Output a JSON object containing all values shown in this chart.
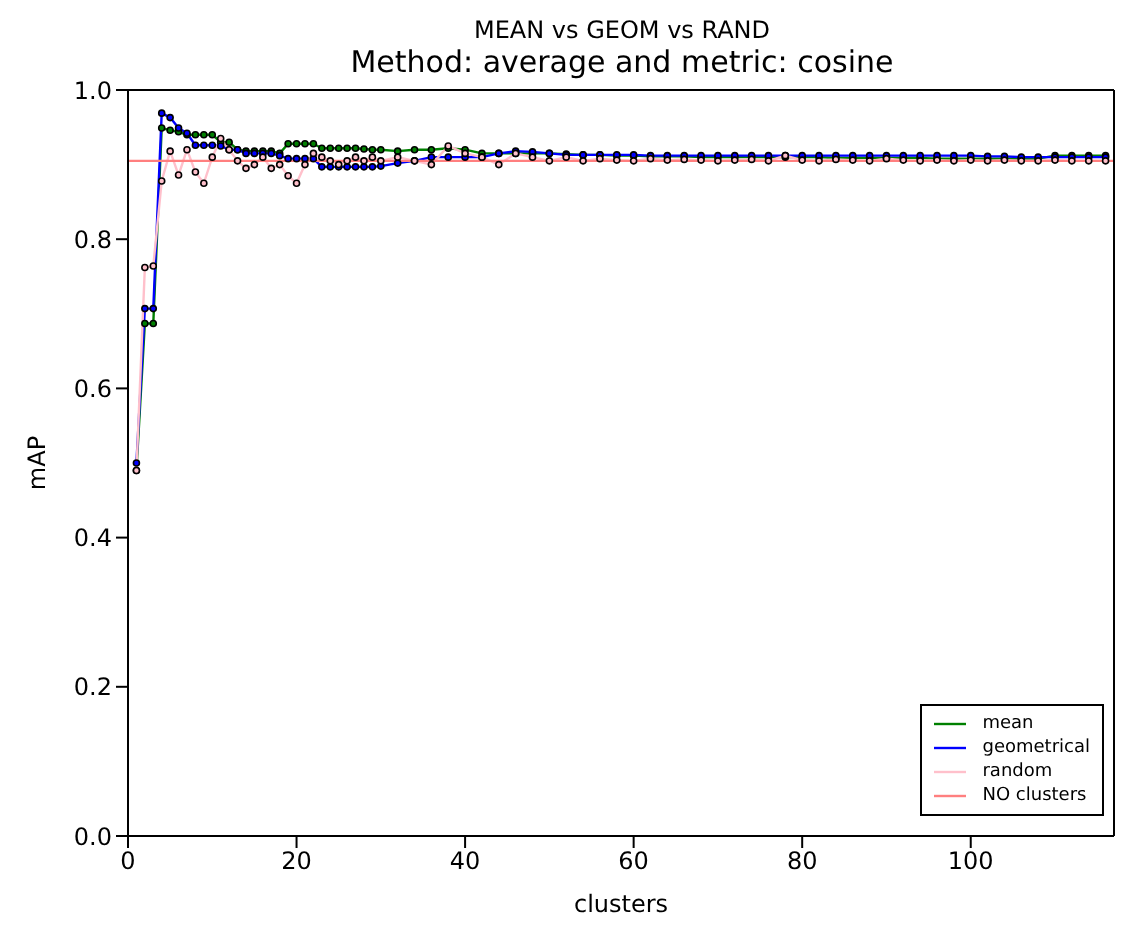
{
  "chart_data": {
    "type": "line",
    "title": "MEAN vs GEOM vs RAND",
    "subtitle": "Method: average and metric: cosine",
    "xlabel": "clusters",
    "ylabel": "mAP",
    "xlim": [
      0,
      117
    ],
    "xticks": [
      0,
      20,
      40,
      60,
      80,
      100
    ],
    "ylim": [
      0,
      1
    ],
    "yticks": [
      {
        "value": 0,
        "label": "0.0"
      },
      {
        "value": 0.2,
        "label": "0.2"
      },
      {
        "value": 0.4,
        "label": "0.4"
      },
      {
        "value": 0.6,
        "label": "0.6"
      },
      {
        "value": 0.8,
        "label": "0.8"
      },
      {
        "value": 1,
        "label": "1.0"
      }
    ],
    "legend": "bottom right",
    "marker": "circle",
    "line_style": "solid",
    "series": [
      {
        "name": "mean",
        "color": "#008000",
        "x": [
          1,
          2,
          3,
          4,
          5,
          6,
          7,
          8,
          9,
          10,
          11,
          12,
          13,
          14,
          15,
          16,
          17,
          18,
          19,
          20,
          21,
          22,
          23,
          24,
          25,
          26,
          27,
          28,
          29,
          30,
          32,
          34,
          36,
          38,
          40,
          42,
          44,
          46,
          48,
          50,
          52,
          54,
          56,
          58,
          60,
          62,
          64,
          66,
          68,
          70,
          72,
          74,
          76,
          78,
          80,
          82,
          84,
          86,
          88,
          90,
          92,
          94,
          96,
          98,
          100,
          102,
          104,
          106,
          108,
          110,
          112,
          114,
          116
        ],
        "values": [
          0.49,
          0.687,
          0.687,
          0.949,
          0.946,
          0.944,
          0.94,
          0.94,
          0.94,
          0.94,
          0.93,
          0.93,
          0.92,
          0.918,
          0.918,
          0.918,
          0.918,
          0.915,
          0.928,
          0.928,
          0.928,
          0.928,
          0.922,
          0.922,
          0.922,
          0.922,
          0.922,
          0.921,
          0.92,
          0.92,
          0.918,
          0.92,
          0.92,
          0.922,
          0.92,
          0.915,
          0.915,
          0.915,
          0.915,
          0.915,
          0.914,
          0.913,
          0.913,
          0.912,
          0.912,
          0.911,
          0.911,
          0.911,
          0.91,
          0.91,
          0.91,
          0.91,
          0.91,
          0.91,
          0.91,
          0.91,
          0.909,
          0.909,
          0.909,
          0.909,
          0.909,
          0.909,
          0.908,
          0.908,
          0.908,
          0.908,
          0.908,
          0.908,
          0.908,
          0.912,
          0.912,
          0.912,
          0.912
        ]
      },
      {
        "name": "geometrical",
        "color": "#0000ff",
        "x": [
          1,
          2,
          3,
          4,
          5,
          6,
          7,
          8,
          9,
          10,
          11,
          12,
          13,
          14,
          15,
          16,
          17,
          18,
          19,
          20,
          21,
          22,
          23,
          24,
          25,
          26,
          27,
          28,
          29,
          30,
          32,
          34,
          36,
          38,
          40,
          42,
          44,
          46,
          48,
          50,
          52,
          54,
          56,
          58,
          60,
          62,
          64,
          66,
          68,
          70,
          72,
          74,
          76,
          78,
          80,
          82,
          84,
          86,
          88,
          90,
          92,
          94,
          96,
          98,
          100,
          102,
          104,
          106,
          108,
          110,
          112,
          114,
          116
        ],
        "values": [
          0.5,
          0.707,
          0.707,
          0.969,
          0.963,
          0.949,
          0.942,
          0.926,
          0.926,
          0.926,
          0.925,
          0.92,
          0.92,
          0.915,
          0.915,
          0.915,
          0.915,
          0.912,
          0.908,
          0.908,
          0.908,
          0.908,
          0.897,
          0.897,
          0.897,
          0.897,
          0.897,
          0.897,
          0.897,
          0.898,
          0.902,
          0.905,
          0.91,
          0.91,
          0.91,
          0.91,
          0.915,
          0.918,
          0.917,
          0.915,
          0.913,
          0.913,
          0.913,
          0.913,
          0.913,
          0.912,
          0.912,
          0.912,
          0.912,
          0.912,
          0.912,
          0.912,
          0.912,
          0.912,
          0.912,
          0.912,
          0.912,
          0.912,
          0.912,
          0.912,
          0.912,
          0.912,
          0.912,
          0.912,
          0.912,
          0.911,
          0.911,
          0.91,
          0.91,
          0.91,
          0.91,
          0.91,
          0.91
        ]
      },
      {
        "name": "random",
        "color": "#ffc0cb",
        "x": [
          1,
          2,
          3,
          4,
          5,
          6,
          7,
          8,
          9,
          10,
          11,
          12,
          13,
          14,
          15,
          16,
          17,
          18,
          19,
          20,
          21,
          22,
          23,
          24,
          25,
          26,
          27,
          28,
          29,
          30,
          32,
          34,
          36,
          38,
          40,
          42,
          44,
          46,
          48,
          50,
          52,
          54,
          56,
          58,
          60,
          62,
          64,
          66,
          68,
          70,
          72,
          74,
          76,
          78,
          80,
          82,
          84,
          86,
          88,
          90,
          92,
          94,
          96,
          98,
          100,
          102,
          104,
          106,
          108,
          110,
          112,
          114,
          116
        ],
        "values": [
          0.49,
          0.762,
          0.764,
          0.878,
          0.918,
          0.886,
          0.92,
          0.89,
          0.875,
          0.91,
          0.935,
          0.92,
          0.905,
          0.895,
          0.9,
          0.91,
          0.895,
          0.9,
          0.885,
          0.875,
          0.9,
          0.915,
          0.91,
          0.905,
          0.9,
          0.905,
          0.91,
          0.905,
          0.91,
          0.905,
          0.91,
          0.905,
          0.9,
          0.925,
          0.915,
          0.91,
          0.9,
          0.915,
          0.91,
          0.905,
          0.91,
          0.905,
          0.908,
          0.906,
          0.905,
          0.908,
          0.906,
          0.907,
          0.906,
          0.905,
          0.906,
          0.907,
          0.905,
          0.912,
          0.906,
          0.905,
          0.907,
          0.906,
          0.905,
          0.908,
          0.906,
          0.905,
          0.906,
          0.905,
          0.906,
          0.905,
          0.906,
          0.905,
          0.905,
          0.906,
          0.905,
          0.905,
          0.905
        ]
      },
      {
        "name": "NO clusters",
        "color": "#ff7f7f",
        "marker": "none",
        "x": [
          0,
          117
        ],
        "values": [
          0.905,
          0.905
        ]
      }
    ]
  }
}
